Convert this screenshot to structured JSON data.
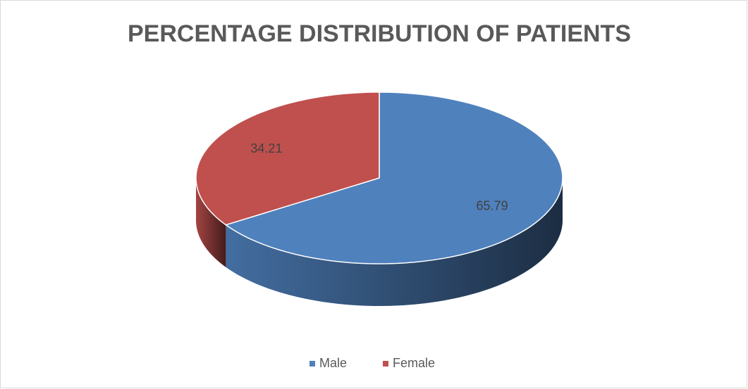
{
  "chart_data": {
    "type": "pie",
    "title": "PERCENTAGE DISTRIBUTION OF PATIENTS",
    "categories": [
      "Male",
      "Female"
    ],
    "values": [
      65.79,
      34.21
    ],
    "colors": [
      "#4f81bd",
      "#c0504d"
    ],
    "legend": "bottom"
  }
}
